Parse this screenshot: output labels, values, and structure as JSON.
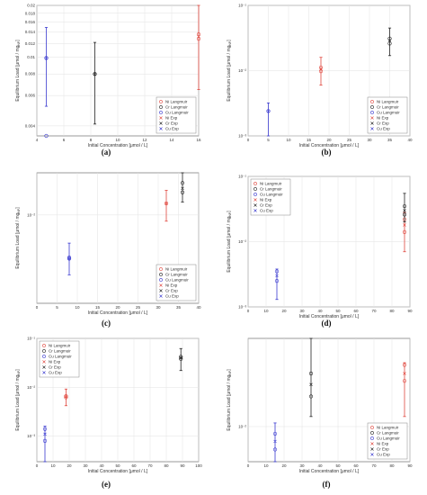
{
  "series_names": [
    "Ni Langmuir",
    "Cr Langmuir",
    "Cu Langmuir",
    "Ni Exp",
    "Cr Exp",
    "Cu Exp"
  ],
  "colors": {
    "Ni": "#e0473e",
    "Cr": "#222222",
    "Cu": "#3a3ad0"
  },
  "chart_data": [
    {
      "type": "scatter",
      "caption": "(a)",
      "xlabel": "Initial Concentration [μmol / L]",
      "ylabel": "Equilibrium Load [μmol / mg",
      "ylabel_sub": "NP",
      "ylabel_end": "]",
      "xscale": "linear",
      "yscale": "log",
      "xlim": [
        4,
        16
      ],
      "ylim": [
        0.0035,
        0.02
      ],
      "xticks": [
        4,
        6,
        8,
        10,
        12,
        14,
        16
      ],
      "xtick_labels": [
        "4",
        "6",
        "8",
        "10",
        "12",
        "14",
        "16"
      ],
      "yticks": [
        0.004,
        0.006,
        0.008,
        0.01,
        0.012,
        0.014,
        0.016,
        0.018,
        0.02
      ],
      "ytick_labels": [
        "0.004",
        "0.006",
        "0.008",
        "0.01",
        "0.012",
        "0.014",
        "0.016",
        "0.018",
        "0.02"
      ],
      "legend_position": "bottom-right",
      "series": [
        {
          "metal": "Ni",
          "x": 16,
          "langmuir": [
            0.0128,
            0.0136
          ],
          "exp": 0.0132,
          "err": [
            0.0065,
            0.02
          ]
        },
        {
          "metal": "Cr",
          "x": 8.3,
          "langmuir": [
            0.008
          ],
          "exp": 0.008,
          "err": [
            0.0041,
            0.0122
          ]
        },
        {
          "metal": "Cu",
          "x": 4.7,
          "langmuir": [
            0.0035,
            0.0099
          ],
          "exp": 0.0099,
          "err": [
            0.0052,
            0.0149
          ]
        }
      ]
    },
    {
      "type": "scatter",
      "caption": "(b)",
      "xlabel": "Initial Concentration [μmol / L]",
      "ylabel": "Equilibrium Load [μmol / mg",
      "ylabel_sub": "NP",
      "ylabel_end": "]",
      "xscale": "linear",
      "yscale": "log",
      "xlim": [
        0,
        40
      ],
      "ylim": [
        0.001,
        0.1
      ],
      "xticks": [
        0,
        5,
        10,
        15,
        20,
        25,
        30,
        35,
        40
      ],
      "xtick_labels": [
        "0",
        "5",
        "10",
        "15",
        "20",
        "25",
        "30",
        "35",
        "40"
      ],
      "yticks": [
        0.001,
        0.01,
        0.1
      ],
      "ytick_labels": [
        "10⁻³",
        "10⁻²",
        "10⁻¹"
      ],
      "legend_position": "bottom-right",
      "series": [
        {
          "metal": "Ni",
          "x": 18,
          "langmuir": [
            0.0098,
            0.0112
          ],
          "exp": 0.0105,
          "err": [
            0.006,
            0.016
          ]
        },
        {
          "metal": "Cr",
          "x": 35,
          "langmuir": [
            0.026,
            0.031
          ],
          "exp": 0.029,
          "err": [
            0.017,
            0.045
          ]
        },
        {
          "metal": "Cu",
          "x": 5,
          "langmuir": [
            0.0024
          ],
          "exp": 0.0024,
          "err": [
            0.001,
            0.0032
          ]
        }
      ]
    },
    {
      "type": "scatter",
      "caption": "(c)",
      "xlabel": "Initial Concentration [μmol / L]",
      "ylabel": "Equilibrium Load [μmol / mg",
      "ylabel_sub": "NP",
      "ylabel_end": "]",
      "xscale": "linear",
      "yscale": "log",
      "xlim": [
        0,
        40
      ],
      "ylim": [
        0.001,
        0.03
      ],
      "xticks": [
        0,
        5,
        10,
        15,
        20,
        25,
        30,
        35,
        40
      ],
      "xtick_labels": [
        "0",
        "5",
        "10",
        "15",
        "20",
        "25",
        "30",
        "35",
        "40"
      ],
      "yticks": [
        0.01
      ],
      "ytick_labels": [
        "10⁻²"
      ],
      "legend_position": "bottom-right",
      "series": [
        {
          "metal": "Ni",
          "x": 32,
          "langmuir": [
            0.0135
          ],
          "exp": 0.0135,
          "err": [
            0.0085,
            0.019
          ]
        },
        {
          "metal": "Cr",
          "x": 36,
          "langmuir": [
            0.018,
            0.023
          ],
          "exp": 0.02,
          "err": [
            0.014,
            0.03
          ]
        },
        {
          "metal": "Cu",
          "x": 8,
          "langmuir": [
            0.0032,
            0.0033
          ],
          "exp": 0.0032,
          "err": [
            0.0021,
            0.0048
          ]
        }
      ]
    },
    {
      "type": "scatter",
      "caption": "(d)",
      "xlabel": "Initial Concentration [μmol / L]",
      "ylabel": "Equilibrium Load [μmol / mg",
      "ylabel_sub": "NP",
      "ylabel_end": "]",
      "xscale": "linear",
      "yscale": "log",
      "xlim": [
        0,
        90
      ],
      "ylim": [
        0.001,
        0.1
      ],
      "xticks": [
        0,
        10,
        20,
        30,
        40,
        50,
        60,
        70,
        80,
        90
      ],
      "xtick_labels": [
        "0",
        "10",
        "20",
        "30",
        "40",
        "50",
        "60",
        "70",
        "80",
        "90"
      ],
      "yticks": [
        0.001,
        0.01,
        0.1
      ],
      "ytick_labels": [
        "10⁻³",
        "10⁻²",
        "10⁻¹"
      ],
      "legend_position": "top-left",
      "series": [
        {
          "metal": "Ni",
          "x": 87,
          "langmuir": [
            0.014,
            0.022
          ],
          "exp": 0.018,
          "err": [
            0.007,
            0.028
          ]
        },
        {
          "metal": "Cr",
          "x": 87,
          "langmuir": [
            0.026,
            0.035
          ],
          "exp": 0.03,
          "err": [
            0.02,
            0.055
          ]
        },
        {
          "metal": "Cu",
          "x": 16,
          "langmuir": [
            0.0025,
            0.0035
          ],
          "exp": 0.003,
          "err": [
            0.0013,
            0.0038
          ]
        }
      ]
    },
    {
      "type": "scatter",
      "caption": "(e)",
      "xlabel": "Initial Concentration [μmol / L]",
      "ylabel": "Equilibrium Load [μmol / mg",
      "ylabel_sub": "NP",
      "ylabel_end": "]",
      "xscale": "linear",
      "yscale": "log",
      "xlim": [
        0,
        100
      ],
      "ylim": [
        0.0003,
        0.1
      ],
      "xticks": [
        0,
        10,
        20,
        30,
        40,
        50,
        60,
        70,
        80,
        90,
        100
      ],
      "xtick_labels": [
        "0",
        "10",
        "20",
        "30",
        "40",
        "50",
        "60",
        "70",
        "80",
        "90",
        "100"
      ],
      "yticks": [
        0.001,
        0.01,
        0.1
      ],
      "ytick_labels": [
        "10⁻³",
        "10⁻²",
        "10⁻¹"
      ],
      "legend_position": "top-left",
      "series": [
        {
          "metal": "Ni",
          "x": 18,
          "langmuir": [
            0.0062,
            0.0066
          ],
          "exp": 0.0064,
          "err": [
            0.0042,
            0.0092
          ]
        },
        {
          "metal": "Cr",
          "x": 89,
          "langmuir": [
            0.038,
            0.042
          ],
          "exp": 0.04,
          "err": [
            0.022,
            0.062
          ]
        },
        {
          "metal": "Cu",
          "x": 5,
          "langmuir": [
            0.0008,
            0.0014
          ],
          "exp": 0.0011,
          "err": [
            0.0003,
            0.0016
          ]
        }
      ]
    },
    {
      "type": "scatter",
      "caption": "(f)",
      "xlabel": "Initial Concentration [μmol / L]",
      "ylabel": "Equilibrium Load [μmol / mg",
      "ylabel_sub": "NP",
      "ylabel_end": "]",
      "xscale": "linear",
      "yscale": "log",
      "xlim": [
        0,
        90
      ],
      "ylim": [
        0.004,
        0.1
      ],
      "xticks": [
        0,
        10,
        20,
        30,
        40,
        50,
        60,
        70,
        80,
        90
      ],
      "xtick_labels": [
        "0",
        "10",
        "20",
        "30",
        "40",
        "50",
        "60",
        "70",
        "80",
        "90"
      ],
      "yticks": [
        0.01
      ],
      "ytick_labels": [
        "10⁻²"
      ],
      "legend_position": "bottom-right",
      "series": [
        {
          "metal": "Ni",
          "x": 87,
          "langmuir": [
            0.033,
            0.05
          ],
          "exp": 0.04,
          "err": [
            0.013,
            0.053
          ]
        },
        {
          "metal": "Cr",
          "x": 35,
          "langmuir": [
            0.022,
            0.04
          ],
          "exp": 0.03,
          "err": [
            0.013,
            0.1
          ]
        },
        {
          "metal": "Cu",
          "x": 15,
          "langmuir": [
            0.0055,
            0.0083
          ],
          "exp": 0.0068,
          "err": [
            0.004,
            0.011
          ]
        }
      ]
    }
  ]
}
